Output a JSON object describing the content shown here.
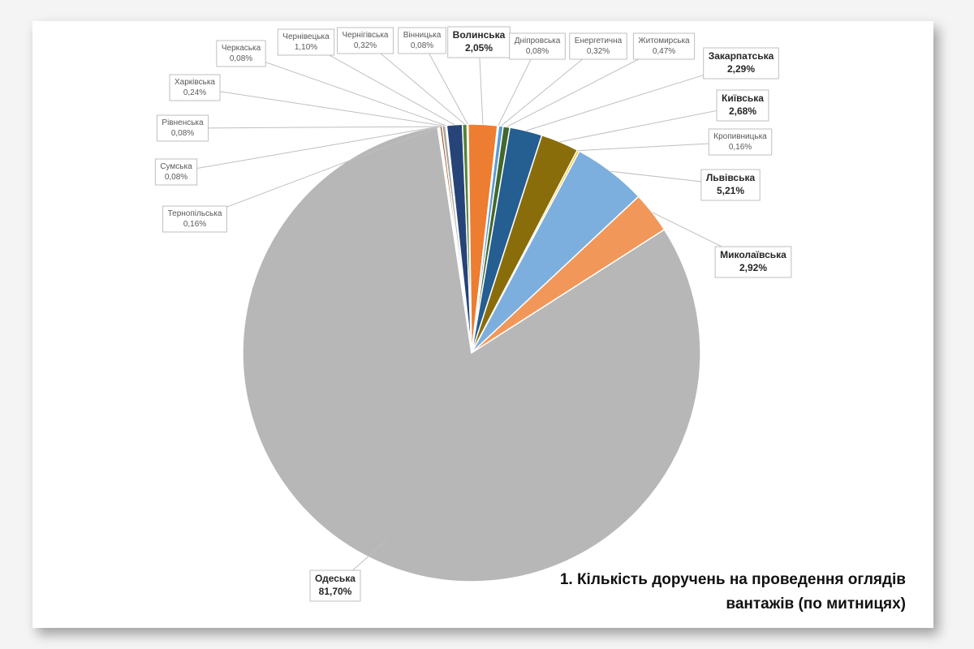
{
  "chart_data": {
    "type": "pie",
    "title": "1. Кількість доручень на проведення оглядів вантажів (по митницях)",
    "categories": [
      "Вінницька",
      "Волинська",
      "Дніпровська",
      "Енергетична",
      "Житомирська",
      "Закарпатська",
      "Київська",
      "Кропивницька",
      "Львівська",
      "Миколаївська",
      "Одеська",
      "Рівненська",
      "Сумська",
      "Тернопільська",
      "Харківська",
      "Черкаська",
      "Чернівецька",
      "Чернігівська"
    ],
    "values": [
      0.08,
      2.05,
      0.08,
      0.32,
      0.47,
      2.29,
      2.68,
      0.16,
      5.21,
      2.92,
      81.7,
      0.08,
      0.08,
      0.16,
      0.24,
      0.08,
      1.1,
      0.32
    ],
    "value_labels": [
      "0,08%",
      "2,05%",
      "0,08%",
      "0,32%",
      "0,47%",
      "2,29%",
      "2,68%",
      "0,16%",
      "5,21%",
      "2,92%",
      "81,70%",
      "0,08%",
      "0,08%",
      "0,16%",
      "0,24%",
      "0,08%",
      "1,10%",
      "0,32%"
    ],
    "colors": [
      "#4472c4",
      "#ed7d31",
      "#70ad47",
      "#5b9bd5",
      "#43682b",
      "#255e91",
      "#8a6d0b",
      "#ffc000",
      "#7cafdd",
      "#f1975a",
      "#b7b7b7",
      "#636363",
      "#997300",
      "#9e480e",
      "#a5a5a5",
      "#c55a11",
      "#264478",
      "#548235"
    ]
  }
}
